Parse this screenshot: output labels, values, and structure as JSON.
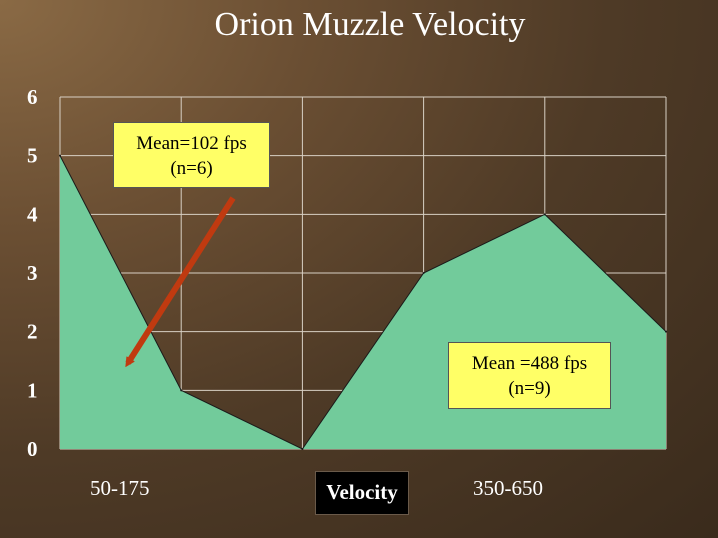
{
  "title": "Orion Muzzle Velocity",
  "colors": {
    "area_fill": "#72cb9b",
    "area_stroke": "#1a1a1a",
    "grid": "#d8d0c4",
    "arrow": "#c03a10",
    "callout_bg": "#ffff66"
  },
  "chart_data": {
    "type": "area",
    "title": "Orion Muzzle Velocity",
    "xlabel": "Velocity",
    "ylabel": "",
    "ylim": [
      0,
      6
    ],
    "yticks": [
      "0",
      "1",
      "2",
      "3",
      "4",
      "5",
      "6"
    ],
    "x_category_labels": [
      "50-175",
      "350-650"
    ],
    "grid": true,
    "series": [
      {
        "values": [
          5,
          1,
          0,
          3,
          4,
          2
        ]
      }
    ],
    "annotations": [
      {
        "line1": "Mean=102 fps",
        "line2": "(n=6)"
      },
      {
        "line1": "Mean =488 fps",
        "line2": "(n=9)"
      }
    ]
  }
}
